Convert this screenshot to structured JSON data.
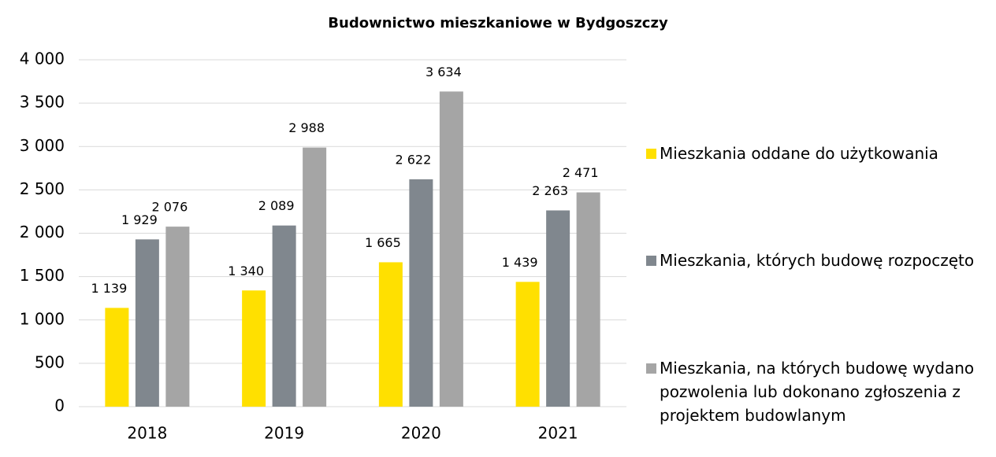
{
  "chart_data": {
    "type": "bar",
    "title": "Budownictwo mieszkaniowe w Bydgoszczy",
    "categories": [
      "2018",
      "2019",
      "2020",
      "2021"
    ],
    "series": [
      {
        "name": "Mieszkania oddane do użytkowania",
        "color": "#ffe000",
        "values": [
          1139,
          1340,
          1665,
          1439
        ],
        "value_labels": [
          "1 139",
          "1 340",
          "1 665",
          "1 439"
        ]
      },
      {
        "name": "Mieszkania, których budowę rozpoczęto",
        "color": "#80878e",
        "values": [
          1929,
          2089,
          2622,
          2263
        ],
        "value_labels": [
          "1 929",
          "2 089",
          "2 622",
          "2 263"
        ]
      },
      {
        "name": "Mieszkania, na których budowę wydano pozwolenia lub dokonano zgłoszenia z projektem budowlanym",
        "color": "#a5a5a5",
        "values": [
          2076,
          2988,
          3634,
          2471
        ],
        "value_labels": [
          "2 076",
          "2 988",
          "3 634",
          "2 471"
        ]
      }
    ],
    "ylim": [
      0,
      4000
    ],
    "yticks": [
      0,
      500,
      {
        "value": 1000,
        "label": "1 000"
      },
      {
        "value": 1500,
        "label": "1 500"
      },
      {
        "value": 2000,
        "label": "2 000"
      },
      {
        "value": 2500,
        "label": "2 500"
      },
      {
        "value": 3000,
        "label": "3 000"
      },
      {
        "value": 3500,
        "label": "3 500"
      },
      {
        "value": 4000,
        "label": "4 000"
      }
    ],
    "grid": true,
    "legend": "right"
  }
}
